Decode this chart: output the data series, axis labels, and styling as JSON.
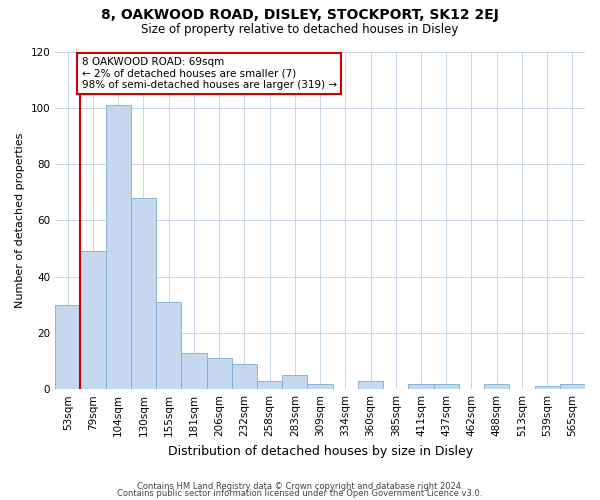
{
  "title": "8, OAKWOOD ROAD, DISLEY, STOCKPORT, SK12 2EJ",
  "subtitle": "Size of property relative to detached houses in Disley",
  "xlabel": "Distribution of detached houses by size in Disley",
  "ylabel": "Number of detached properties",
  "bar_labels": [
    "53sqm",
    "79sqm",
    "104sqm",
    "130sqm",
    "155sqm",
    "181sqm",
    "206sqm",
    "232sqm",
    "258sqm",
    "283sqm",
    "309sqm",
    "334sqm",
    "360sqm",
    "385sqm",
    "411sqm",
    "437sqm",
    "462sqm",
    "488sqm",
    "513sqm",
    "539sqm",
    "565sqm"
  ],
  "bar_values": [
    30,
    49,
    101,
    68,
    31,
    13,
    11,
    9,
    3,
    5,
    2,
    0,
    3,
    0,
    2,
    2,
    0,
    2,
    0,
    1,
    2
  ],
  "bar_color": "#c5d8f0",
  "bar_edge_color": "#7aadd4",
  "highlight_line_color": "#cc0000",
  "annotation_text": "8 OAKWOOD ROAD: 69sqm\n← 2% of detached houses are smaller (7)\n98% of semi-detached houses are larger (319) →",
  "annotation_box_color": "#ffffff",
  "annotation_box_edge_color": "#cc0000",
  "ylim": [
    0,
    120
  ],
  "yticks": [
    0,
    20,
    40,
    60,
    80,
    100,
    120
  ],
  "footer1": "Contains HM Land Registry data © Crown copyright and database right 2024.",
  "footer2": "Contains public sector information licensed under the Open Government Licence v3.0.",
  "bg_color": "#ffffff",
  "grid_color": "#c8d8e8",
  "title_fontsize": 10,
  "subtitle_fontsize": 8.5,
  "xlabel_fontsize": 9,
  "ylabel_fontsize": 8,
  "tick_fontsize": 7.5,
  "footer_fontsize": 6
}
